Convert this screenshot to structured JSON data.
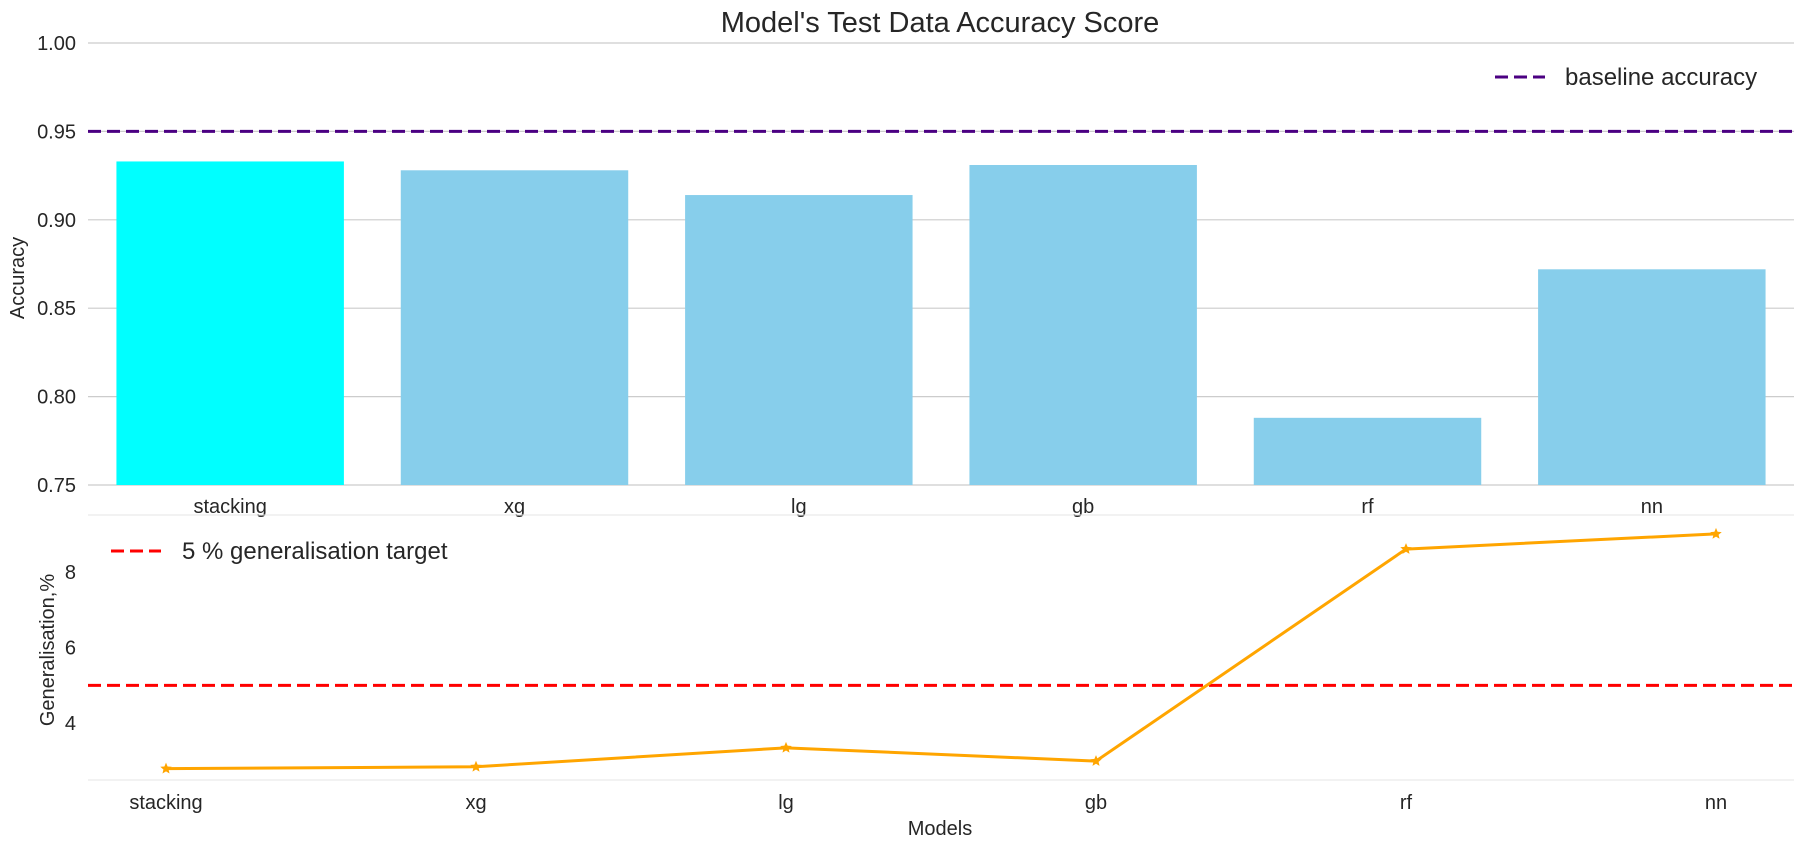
{
  "chart_data": [
    {
      "type": "bar",
      "title": "Model's Test Data Accuracy Score",
      "xlabel": "",
      "ylabel": "Accuracy",
      "categories": [
        "stacking",
        "xg",
        "lg",
        "gb",
        "rf",
        "nn"
      ],
      "values": [
        0.933,
        0.928,
        0.914,
        0.931,
        0.788,
        0.872
      ],
      "ylim": [
        0.75,
        1.0
      ],
      "yticks": [
        "0.75",
        "0.80",
        "0.85",
        "0.90",
        "0.95",
        "1.00"
      ],
      "grid": true,
      "bar_colors": [
        "#00ffff",
        "#87ceeb",
        "#87ceeb",
        "#87ceeb",
        "#87ceeb",
        "#87ceeb"
      ],
      "reference_line": {
        "label": "baseline accuracy",
        "value": 0.95,
        "color": "#4b0082",
        "style": "dashed"
      },
      "legend_position": "top-right"
    },
    {
      "type": "line",
      "title": "",
      "xlabel": "Models",
      "ylabel": "Generalisation,%",
      "categories": [
        "stacking",
        "xg",
        "lg",
        "gb",
        "rf",
        "nn"
      ],
      "values": [
        2.8,
        2.85,
        3.35,
        3.0,
        8.6,
        9.0
      ],
      "ylim": [
        2.5,
        9.5
      ],
      "yticks": [
        "4",
        "6",
        "8"
      ],
      "grid": false,
      "line_color": "#ffa500",
      "marker": "star",
      "reference_line": {
        "label": "5 % generalisation target",
        "value": 5,
        "color": "#ff0000",
        "style": "dashed"
      },
      "legend_position": "top-left"
    }
  ]
}
